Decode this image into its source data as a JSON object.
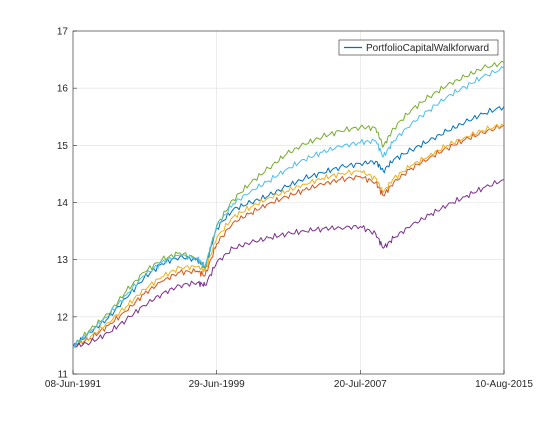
{
  "chart_data": {
    "type": "line",
    "title": "",
    "xlabel": "",
    "ylabel": "",
    "x_tick_labels": [
      "08-Jun-1991",
      "29-Jun-1999",
      "20-Jul-2007",
      "10-Aug-2015"
    ],
    "x_tick_dates": [
      "1991-06-08",
      "1999-06-29",
      "2007-07-20",
      "2015-08-10"
    ],
    "xlim": [
      "1991-06-08",
      "2015-08-10"
    ],
    "ylim": [
      11,
      17
    ],
    "y_ticks": [
      11,
      12,
      13,
      14,
      15,
      16,
      17
    ],
    "grid": true,
    "legend": {
      "position": "top-right",
      "entries": [
        "PortfolioCapitalWalkforward"
      ]
    },
    "series": [
      {
        "name": "PortfolioCapitalWalkforward",
        "color": "#0072bd",
        "x": [
          "1991-06-08",
          "1992-06-01",
          "1993-06-01",
          "1994-06-01",
          "1995-06-01",
          "1996-06-01",
          "1997-06-01",
          "1998-06-01",
          "1998-11-01",
          "1999-06-29",
          "2000-06-01",
          "2001-06-01",
          "2002-06-01",
          "2003-06-01",
          "2004-06-01",
          "2005-06-01",
          "2006-06-01",
          "2007-07-20",
          "2008-06-01",
          "2008-11-01",
          "2009-06-01",
          "2010-06-01",
          "2011-06-01",
          "2012-06-01",
          "2013-06-01",
          "2014-06-01",
          "2015-08-10"
        ],
        "y": [
          11.48,
          11.73,
          11.98,
          12.33,
          12.68,
          12.93,
          13.05,
          13.0,
          12.87,
          13.55,
          13.88,
          14.0,
          14.12,
          14.28,
          14.42,
          14.52,
          14.62,
          14.68,
          14.72,
          14.55,
          14.75,
          14.92,
          15.08,
          15.25,
          15.4,
          15.55,
          15.68
        ]
      },
      {
        "color": "#d95319",
        "x": [
          "1991-06-08",
          "1992-06-01",
          "1993-06-01",
          "1994-06-01",
          "1995-06-01",
          "1996-06-01",
          "1997-06-01",
          "1998-06-01",
          "1998-11-01",
          "1999-06-29",
          "2000-06-01",
          "2001-06-01",
          "2002-06-01",
          "2003-06-01",
          "2004-06-01",
          "2005-06-01",
          "2006-06-01",
          "2007-07-20",
          "2008-06-01",
          "2008-11-01",
          "2009-06-01",
          "2010-06-01",
          "2011-06-01",
          "2012-06-01",
          "2013-06-01",
          "2014-06-01",
          "2015-08-10"
        ],
        "y": [
          11.48,
          11.62,
          11.85,
          12.1,
          12.4,
          12.62,
          12.78,
          12.8,
          12.72,
          13.28,
          13.65,
          13.82,
          13.98,
          14.1,
          14.22,
          14.32,
          14.4,
          14.45,
          14.35,
          14.12,
          14.35,
          14.6,
          14.78,
          14.95,
          15.1,
          15.22,
          15.35
        ]
      },
      {
        "color": "#edb120",
        "x": [
          "1991-06-08",
          "1992-06-01",
          "1993-06-01",
          "1994-06-01",
          "1995-06-01",
          "1996-06-01",
          "1997-06-01",
          "1998-06-01",
          "1998-11-01",
          "1999-06-29",
          "2000-06-01",
          "2001-06-01",
          "2002-06-01",
          "2003-06-01",
          "2004-06-01",
          "2005-06-01",
          "2006-06-01",
          "2007-07-20",
          "2008-06-01",
          "2008-11-01",
          "2009-06-01",
          "2010-06-01",
          "2011-06-01",
          "2012-06-01",
          "2013-06-01",
          "2014-06-01",
          "2015-08-10"
        ],
        "y": [
          11.48,
          11.65,
          11.9,
          12.18,
          12.48,
          12.7,
          12.86,
          12.88,
          12.8,
          13.38,
          13.75,
          13.92,
          14.08,
          14.2,
          14.32,
          14.42,
          14.5,
          14.55,
          14.42,
          14.18,
          14.42,
          14.65,
          14.82,
          15.0,
          15.14,
          15.26,
          15.37
        ]
      },
      {
        "color": "#7e2f8e",
        "x": [
          "1991-06-08",
          "1992-06-01",
          "1993-06-01",
          "1994-06-01",
          "1995-06-01",
          "1996-06-01",
          "1997-06-01",
          "1998-06-01",
          "1998-11-01",
          "1999-06-29",
          "2000-06-01",
          "2001-06-01",
          "2002-06-01",
          "2003-06-01",
          "2004-06-01",
          "2005-06-01",
          "2006-06-01",
          "2007-07-20",
          "2008-06-01",
          "2008-11-01",
          "2009-06-01",
          "2010-06-01",
          "2011-06-01",
          "2012-06-01",
          "2013-06-01",
          "2014-06-01",
          "2015-08-10"
        ],
        "y": [
          11.48,
          11.55,
          11.72,
          11.95,
          12.2,
          12.4,
          12.55,
          12.6,
          12.55,
          12.95,
          13.2,
          13.3,
          13.38,
          13.45,
          13.5,
          13.54,
          13.56,
          13.58,
          13.45,
          13.2,
          13.38,
          13.6,
          13.78,
          13.95,
          14.1,
          14.25,
          14.4
        ]
      },
      {
        "color": "#77ac30",
        "x": [
          "1991-06-08",
          "1992-06-01",
          "1993-06-01",
          "1994-06-01",
          "1995-06-01",
          "1996-06-01",
          "1997-06-01",
          "1998-06-01",
          "1998-11-01",
          "1999-06-29",
          "2000-06-01",
          "2001-06-01",
          "2002-06-01",
          "2003-06-01",
          "2004-06-01",
          "2005-06-01",
          "2006-06-01",
          "2007-07-20",
          "2008-06-01",
          "2008-11-01",
          "2009-06-01",
          "2010-06-01",
          "2011-06-01",
          "2012-06-01",
          "2013-06-01",
          "2014-06-01",
          "2015-08-10"
        ],
        "y": [
          11.48,
          11.78,
          12.05,
          12.45,
          12.78,
          13.0,
          13.12,
          13.02,
          12.85,
          13.6,
          14.05,
          14.35,
          14.6,
          14.85,
          15.02,
          15.15,
          15.25,
          15.32,
          15.3,
          14.98,
          15.3,
          15.62,
          15.85,
          16.05,
          16.2,
          16.35,
          16.45
        ]
      },
      {
        "color": "#4dbeee",
        "x": [
          "1991-06-08",
          "1992-06-01",
          "1993-06-01",
          "1994-06-01",
          "1995-06-01",
          "1996-06-01",
          "1997-06-01",
          "1998-06-01",
          "1998-11-01",
          "1999-06-29",
          "2000-06-01",
          "2001-06-01",
          "2002-06-01",
          "2003-06-01",
          "2004-06-01",
          "2005-06-01",
          "2006-06-01",
          "2007-07-20",
          "2008-06-01",
          "2008-11-01",
          "2009-06-01",
          "2010-06-01",
          "2011-06-01",
          "2012-06-01",
          "2013-06-01",
          "2014-06-01",
          "2015-08-10"
        ],
        "y": [
          11.48,
          11.75,
          12.02,
          12.38,
          12.72,
          12.95,
          13.08,
          13.02,
          12.88,
          13.58,
          13.98,
          14.2,
          14.38,
          14.58,
          14.75,
          14.88,
          14.98,
          15.05,
          15.08,
          14.8,
          15.08,
          15.38,
          15.62,
          15.85,
          16.02,
          16.2,
          16.35
        ]
      }
    ]
  }
}
